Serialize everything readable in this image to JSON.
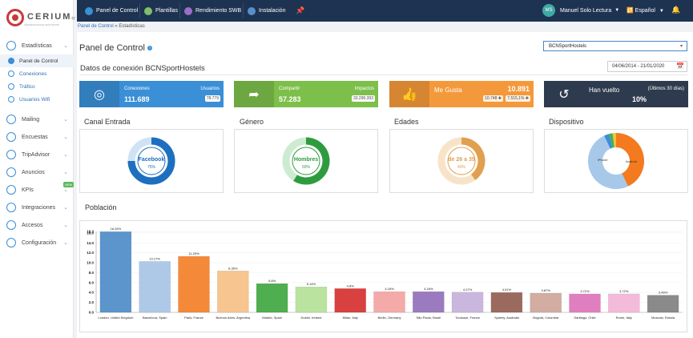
{
  "brand": {
    "name": "CERIUM",
    "tagline": "TECHNOLOGICAL SOLUTIONS"
  },
  "sidebar": {
    "groups": [
      {
        "label": "Estadísticas",
        "icon": "chart-icon",
        "subs": [
          {
            "label": "Panel de Control",
            "active": true
          },
          {
            "label": "Conexiones",
            "active": false
          },
          {
            "label": "Tráfico",
            "active": false
          },
          {
            "label": "Usuarios Wifi",
            "active": false
          }
        ]
      },
      {
        "label": "Mailing",
        "icon": "mail-icon"
      },
      {
        "label": "Encuestas",
        "icon": "survey-icon"
      },
      {
        "label": "TripAdvisor",
        "icon": "tripadvisor-icon"
      },
      {
        "label": "Anuncios",
        "icon": "megaphone-icon"
      },
      {
        "label": "KPIs",
        "icon": "kpi-icon",
        "badge": "NEW"
      },
      {
        "label": "Integraciones",
        "icon": "plug-icon"
      },
      {
        "label": "Accesos",
        "icon": "key-icon"
      },
      {
        "label": "Configuración",
        "icon": "gear-icon"
      }
    ]
  },
  "topnav": [
    {
      "label": "Panel de Control",
      "icon": "dashboard-icon",
      "color": "#3a8fd6"
    },
    {
      "label": "Plantillas",
      "icon": "templates-icon",
      "color": "#7fbf6a"
    },
    {
      "label": "Rendimiento SWB",
      "icon": "performance-icon",
      "color": "#9b6fc7"
    },
    {
      "label": "Instalación",
      "icon": "install-icon",
      "color": "#5a8fc9"
    }
  ],
  "user": {
    "initials": "MS",
    "name": "Manuel Solo Lectura",
    "language": "Español"
  },
  "breadcrumb": {
    "link": "Panel de Control",
    "sep": "»",
    "current": "Estadísticas"
  },
  "page": {
    "title": "Panel de Control",
    "select_value": "BCNSportHostels",
    "subtitle": "Datos de conexión BCNSportHostels",
    "date_range": "04/06/2014 - 21/01/2020"
  },
  "cards": [
    {
      "label": "Conexiones",
      "value": "111.689",
      "right_label": "Usuarios",
      "right_badge": "78.779",
      "color": "#3a8fd6",
      "icon": "target-icon"
    },
    {
      "label": "Compartir",
      "value": "57.283",
      "right_label": "Impactos",
      "right_badge": "33.290.393",
      "color": "#7cbf4a",
      "icon": "share-icon"
    },
    {
      "label": "Me Gusta",
      "value": "10.891",
      "badge1": "10.748 ✚",
      "badge2": "7.515,1% ✚",
      "color": "#f4993b",
      "icon": "thumbs-up-icon"
    },
    {
      "label": "Han vuelto",
      "value": "10%",
      "right_label": "(Últimos 30 días)",
      "color": "#2e3a4d",
      "icon": "return-icon"
    }
  ],
  "sections": {
    "canal": "Canal Entrada",
    "genero": "Género",
    "edades": "Edades",
    "dispositivo": "Dispositivo",
    "poblacion": "Población"
  },
  "donuts": [
    {
      "label": "Facebook",
      "pct": "75%",
      "fraction": 0.75,
      "color": "#1e6fbf",
      "track": "#cfe3f5"
    },
    {
      "label": "Hombres",
      "pct": "59%",
      "fraction": 0.59,
      "color": "#2e9c3e",
      "track": "#cdebd1"
    },
    {
      "label": "de 26 a 35",
      "pct": "40%",
      "fraction": 0.4,
      "color": "#e0a050",
      "track": "#f7e4c8"
    }
  ],
  "device": {
    "labels": [
      "iPhone",
      "Android"
    ],
    "values": [
      0.43,
      0.5,
      0.03,
      0.02,
      0.02
    ],
    "colors": [
      "#f37a1f",
      "#a8c8ea",
      "#3a8fd6",
      "#4cae4c",
      "#f0c040"
    ]
  },
  "chart_data": {
    "type": "bar",
    "title": "Población",
    "categories": [
      "London, United Kingdom",
      "Barcelona, Spain",
      "Paris, France",
      "Buenos Aires, Argentina",
      "Madrid, Spain",
      "Dublin, Ireland",
      "Milan, Italy",
      "Berlin, Germany",
      "São Paulo, Brazil",
      "Toulouse, France",
      "Sydney, Australia",
      "Bogotá, Colombia",
      "Santiago, Chile",
      "Rome, Italy",
      "Moscow, Russia"
    ],
    "values": [
      16.26,
      10.27,
      11.29,
      8.35,
      5.8,
      5.14,
      4.8,
      4.18,
      4.18,
      4.07,
      4.01,
      3.87,
      3.72,
      3.72,
      3.46
    ],
    "labels": [
      "16.26%",
      "10.27%",
      "11.29%",
      "8.35%",
      "5.8%",
      "5.14%",
      "4.8%",
      "4.18%",
      "4.18%",
      "4.07%",
      "4.01%",
      "3.87%",
      "3.72%",
      "3.72%",
      "3.46%"
    ],
    "colors": [
      "#5b95cc",
      "#aec9e8",
      "#f5893a",
      "#f7c58f",
      "#4fae4f",
      "#b9e39e",
      "#d94040",
      "#f4aaa8",
      "#9a7bbf",
      "#c9b7de",
      "#9b6a5e",
      "#d3aca2",
      "#e07fc0",
      "#f3bbd9",
      "#8a8a8a"
    ],
    "yticks": [
      "0.0",
      "2.0",
      "4.0",
      "6.0",
      "8.0",
      "10.0",
      "12.0",
      "14.0",
      "16.0",
      "16.3"
    ],
    "ylim": [
      0,
      16.3
    ]
  }
}
